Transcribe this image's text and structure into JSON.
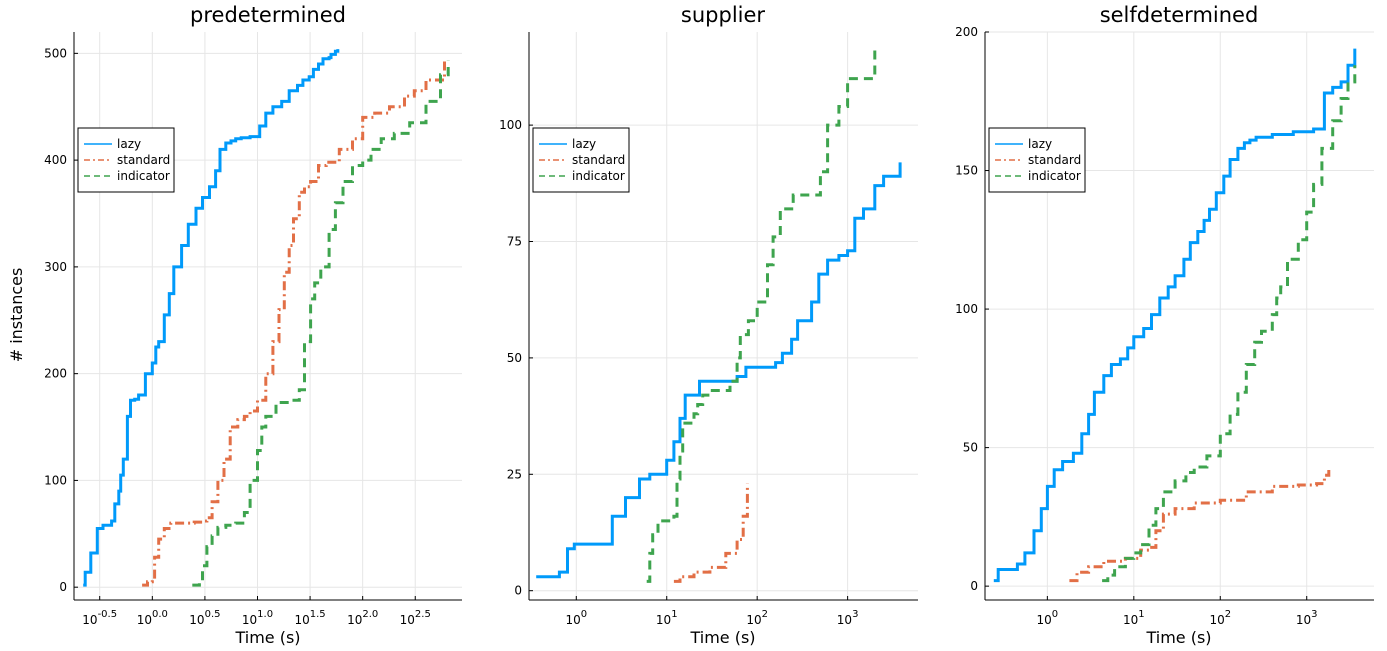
{
  "chart_data": [
    {
      "type": "line",
      "title": "predetermined",
      "xlabel": "Time (s)",
      "ylabel": "# instances",
      "xscale": "log10",
      "xlim": [
        0.18,
        880
      ],
      "ylim": [
        -12,
        520
      ],
      "xticks": [
        {
          "value": 0.316,
          "label": "10",
          "sup": "-0.5"
        },
        {
          "value": 1.0,
          "label": "10",
          "sup": "0.0"
        },
        {
          "value": 3.162,
          "label": "10",
          "sup": "0.5"
        },
        {
          "value": 10.0,
          "label": "10",
          "sup": "1.0"
        },
        {
          "value": 31.62,
          "label": "10",
          "sup": "1.5"
        },
        {
          "value": 100.0,
          "label": "10",
          "sup": "2.0"
        },
        {
          "value": 316.2,
          "label": "10",
          "sup": "2.5"
        }
      ],
      "yticks": [
        0,
        100,
        200,
        300,
        400,
        500
      ],
      "grid": true,
      "legend_position": "left",
      "series": [
        {
          "name": "lazy",
          "color": "#009AFA",
          "dash": "solid",
          "x": [
            0.22,
            0.23,
            0.26,
            0.3,
            0.34,
            0.41,
            0.44,
            0.48,
            0.5,
            0.53,
            0.58,
            0.62,
            0.68,
            0.74,
            0.86,
            1.0,
            1.08,
            1.15,
            1.3,
            1.45,
            1.6,
            1.9,
            2.2,
            2.6,
            3.0,
            3.5,
            4.0,
            4.4,
            5.0,
            5.6,
            6.2,
            7.0,
            8.5,
            10.5,
            12.0,
            14.0,
            17.0,
            20.0,
            24.0,
            27.0,
            31.0,
            34.0,
            38.0,
            42.0,
            48.0,
            50.0,
            55.0,
            58.0
          ],
          "y": [
            2,
            14,
            32,
            55,
            58,
            62,
            78,
            90,
            105,
            120,
            160,
            175,
            176,
            180,
            200,
            210,
            225,
            230,
            255,
            275,
            300,
            320,
            340,
            355,
            365,
            375,
            390,
            410,
            416,
            418,
            420,
            421,
            422,
            432,
            444,
            450,
            455,
            465,
            470,
            475,
            478,
            485,
            490,
            495,
            496,
            499,
            502,
            504
          ]
        },
        {
          "name": "standard",
          "color": "#E26F46",
          "dash": "dashdot",
          "x": [
            0.8,
            0.9,
            1.0,
            1.05,
            1.15,
            1.3,
            1.5,
            2.5,
            3.0,
            3.3,
            3.7,
            4.2,
            4.8,
            5.5,
            6.5,
            7.5,
            8.5,
            10.0,
            12.0,
            14.0,
            16.0,
            18.0,
            20.0,
            22.0,
            25.0,
            28.0,
            32.0,
            38.0,
            45.0,
            60.0,
            80.0,
            100.0,
            130.0,
            180.0,
            250.0,
            310.0,
            400.0,
            600.0
          ],
          "y": [
            2,
            5,
            8,
            28,
            45,
            55,
            60,
            61,
            62,
            65,
            80,
            100,
            120,
            150,
            157,
            160,
            165,
            175,
            200,
            230,
            260,
            295,
            320,
            345,
            370,
            375,
            380,
            395,
            398,
            410,
            420,
            440,
            444,
            450,
            460,
            465,
            475,
            493
          ]
        },
        {
          "name": "indicator",
          "color": "#3EA44E",
          "dash": "dashed",
          "x": [
            2.4,
            2.8,
            3.0,
            3.3,
            3.7,
            4.2,
            5.0,
            6.2,
            7.5,
            8.5,
            10.0,
            11.0,
            12.0,
            15.0,
            20.0,
            25.0,
            28.0,
            32.0,
            35.0,
            40.0,
            48.0,
            55.0,
            65.0,
            80.0,
            100.0,
            120.0,
            150.0,
            200.0,
            280.0,
            400.0,
            550.0,
            650.0
          ],
          "y": [
            2,
            5,
            20,
            38,
            48,
            56,
            58,
            60,
            70,
            100,
            128,
            150,
            160,
            173,
            175,
            185,
            230,
            270,
            285,
            300,
            335,
            360,
            380,
            395,
            400,
            410,
            420,
            425,
            435,
            455,
            480,
            493
          ]
        }
      ]
    },
    {
      "type": "line",
      "title": "supplier",
      "xlabel": "Time (s)",
      "xscale": "log10",
      "xlim": [
        0.3,
        6000
      ],
      "ylim": [
        -2,
        120
      ],
      "xticks": [
        {
          "value": 1.0,
          "label": "10",
          "sup": "0"
        },
        {
          "value": 10.0,
          "label": "10",
          "sup": "1"
        },
        {
          "value": 100.0,
          "label": "10",
          "sup": "2"
        },
        {
          "value": 1000.0,
          "label": "10",
          "sup": "3"
        }
      ],
      "yticks": [
        0,
        25,
        50,
        75,
        100
      ],
      "grid": true,
      "legend_position": "left",
      "series": [
        {
          "name": "lazy",
          "color": "#009AFA",
          "dash": "solid",
          "x": [
            0.36,
            0.65,
            0.8,
            0.95,
            2.5,
            3.5,
            5.0,
            6.5,
            10.0,
            12.0,
            14.0,
            16.0,
            18.0,
            23.0,
            60.0,
            75.0,
            160.0,
            190.0,
            240.0,
            280.0,
            400.0,
            480.0,
            600.0,
            800.0,
            1000.0,
            1200.0,
            1500.0,
            2000.0,
            2500.0,
            3800.0
          ],
          "y": [
            3,
            4,
            9,
            10,
            16,
            20,
            24,
            25,
            28,
            32,
            37,
            42,
            42,
            45,
            46,
            48,
            49,
            51,
            54,
            58,
            62,
            68,
            71,
            72,
            73,
            80,
            82,
            87,
            89,
            92
          ]
        },
        {
          "name": "standard",
          "color": "#E26F46",
          "dash": "dashdot",
          "x": [
            12.0,
            14.0,
            20.0,
            30.0,
            45.0,
            60.0,
            70.0,
            78.0
          ],
          "y": [
            2,
            3,
            4,
            5,
            8,
            11,
            16,
            23
          ]
        },
        {
          "name": "indicator",
          "color": "#3EA44E",
          "dash": "dashed",
          "x": [
            6.0,
            6.5,
            7.0,
            8.0,
            12.0,
            13.0,
            14.0,
            15.0,
            20.0,
            22.0,
            25.0,
            30.0,
            50.0,
            60.0,
            65.0,
            80.0,
            100.0,
            130.0,
            150.0,
            180.0,
            250.0,
            500.0,
            600.0,
            800.0,
            1000.0,
            2000.0
          ],
          "y": [
            2,
            8,
            12,
            15,
            16,
            24,
            30,
            36,
            38,
            40,
            42,
            43,
            45,
            50,
            55,
            58,
            62,
            70,
            76,
            82,
            85,
            90,
            100,
            104,
            110,
            117
          ]
        }
      ]
    },
    {
      "type": "line",
      "title": "selfdetermined",
      "xlabel": "Time (s)",
      "xscale": "log10",
      "xlim": [
        0.19,
        6000
      ],
      "ylim": [
        -5,
        200
      ],
      "xticks": [
        {
          "value": 1.0,
          "label": "10",
          "sup": "0"
        },
        {
          "value": 10.0,
          "label": "10",
          "sup": "1"
        },
        {
          "value": 100.0,
          "label": "10",
          "sup": "2"
        },
        {
          "value": 1000.0,
          "label": "10",
          "sup": "3"
        }
      ],
      "yticks": [
        0,
        50,
        100,
        150,
        200
      ],
      "grid": true,
      "legend_position": "left",
      "series": [
        {
          "name": "lazy",
          "color": "#009AFA",
          "dash": "solid",
          "x": [
            0.24,
            0.27,
            0.45,
            0.55,
            0.7,
            0.85,
            1.0,
            1.2,
            1.5,
            2.0,
            2.5,
            3.0,
            3.5,
            4.5,
            5.5,
            7.0,
            8.5,
            10.0,
            13.0,
            16.0,
            20.0,
            25.0,
            30.0,
            38.0,
            45.0,
            55.0,
            65.0,
            75.0,
            90.0,
            110.0,
            130.0,
            160.0,
            190.0,
            220.0,
            260.0,
            400.0,
            700.0,
            1200.0,
            1600.0,
            2000.0,
            2500.0,
            3000.0,
            3600.0
          ],
          "y": [
            2,
            6,
            8,
            12,
            20,
            28,
            36,
            42,
            45,
            48,
            55,
            62,
            70,
            76,
            80,
            82,
            86,
            90,
            93,
            98,
            104,
            108,
            112,
            118,
            124,
            128,
            132,
            136,
            142,
            148,
            154,
            158,
            160,
            161,
            162,
            163,
            164,
            165,
            178,
            180,
            182,
            188,
            194
          ]
        },
        {
          "name": "standard",
          "color": "#E26F46",
          "dash": "dashdot",
          "x": [
            1.8,
            2.2,
            3.0,
            4.5,
            8.0,
            12.0,
            15.0,
            18.0,
            22.0,
            30.0,
            50.0,
            100.0,
            200.0,
            400.0,
            800.0,
            1300.0,
            1600.0,
            1800.0
          ],
          "y": [
            2,
            5,
            7,
            9,
            10,
            13,
            14,
            20,
            26,
            28,
            30,
            31,
            34,
            36,
            36.5,
            37,
            40,
            42
          ]
        },
        {
          "name": "indicator",
          "color": "#3EA44E",
          "dash": "dashed",
          "x": [
            4.3,
            5.0,
            6.0,
            8.0,
            10.0,
            12.0,
            15.0,
            18.0,
            22.0,
            30.0,
            40.0,
            50.0,
            70.0,
            100.0,
            130.0,
            160.0,
            200.0,
            250.0,
            300.0,
            400.0,
            450.0,
            500.0,
            600.0,
            800.0,
            1000.0,
            1200.0,
            1500.0,
            2000.0,
            2500.0,
            3000.0,
            3600.0
          ],
          "y": [
            2,
            4,
            7,
            10,
            12,
            15,
            22,
            28,
            34,
            38,
            41,
            43,
            47,
            55,
            62,
            70,
            80,
            88,
            92,
            98,
            104,
            108,
            118,
            125,
            135,
            145,
            158,
            168,
            176,
            182,
            188
          ]
        }
      ]
    }
  ]
}
